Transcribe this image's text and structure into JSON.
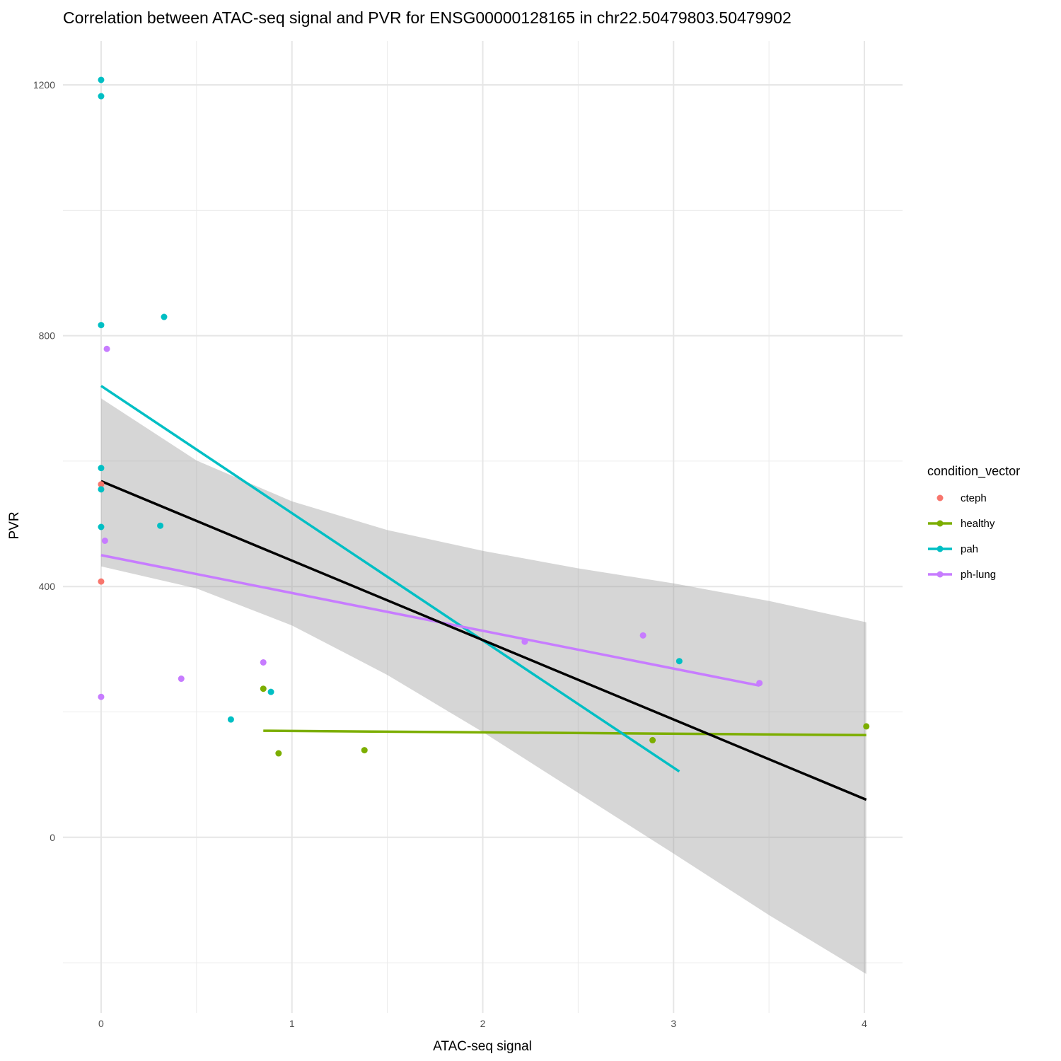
{
  "chart_data": {
    "type": "scatter",
    "title": "Correlation between ATAC-seq signal and PVR for ENSG00000128165 in chr22.50479803.50479902",
    "xlabel": "ATAC-seq signal",
    "ylabel": "PVR",
    "xlim": [
      -0.2,
      4.2
    ],
    "ylim": [
      -280,
      1270
    ],
    "x_ticks": [
      0,
      1,
      2,
      3,
      4
    ],
    "y_ticks": [
      0,
      400,
      800,
      1200
    ],
    "x_minor": [
      0.5,
      1.5,
      2.5,
      3.5
    ],
    "y_minor": [
      -200,
      200,
      600,
      1000
    ],
    "grid": true,
    "legend": {
      "title": "condition_vector",
      "position": "right"
    },
    "series": [
      {
        "name": "cteph",
        "color": "#F8766D",
        "points": [
          [
            0.0,
            408
          ],
          [
            0.0,
            563
          ]
        ],
        "fit": null
      },
      {
        "name": "healthy",
        "color": "#7CAE00",
        "points": [
          [
            0.85,
            237
          ],
          [
            0.93,
            134
          ],
          [
            1.38,
            139
          ],
          [
            2.89,
            155
          ],
          [
            4.01,
            177
          ]
        ],
        "fit": [
          [
            0.85,
            170
          ],
          [
            4.01,
            163
          ]
        ]
      },
      {
        "name": "pah",
        "color": "#00BFC4",
        "points": [
          [
            0.0,
            1208
          ],
          [
            0.0,
            1182
          ],
          [
            0.0,
            817
          ],
          [
            0.33,
            830
          ],
          [
            0.0,
            589
          ],
          [
            0.0,
            555
          ],
          [
            0.0,
            495
          ],
          [
            0.31,
            497
          ],
          [
            0.89,
            232
          ],
          [
            0.68,
            188
          ],
          [
            3.03,
            281
          ]
        ],
        "fit": [
          [
            0.0,
            720
          ],
          [
            3.03,
            105
          ]
        ]
      },
      {
        "name": "ph-lung",
        "color": "#C77CFF",
        "points": [
          [
            0.03,
            779
          ],
          [
            0.02,
            473
          ],
          [
            0.0,
            224
          ],
          [
            0.42,
            253
          ],
          [
            0.85,
            279
          ],
          [
            2.22,
            312
          ],
          [
            2.84,
            322
          ],
          [
            3.45,
            246
          ]
        ],
        "fit": [
          [
            0.0,
            450
          ],
          [
            3.45,
            242
          ]
        ]
      }
    ],
    "overall_fit": {
      "color": "#000000",
      "line": [
        [
          0.0,
          568
        ],
        [
          4.01,
          60
        ]
      ],
      "ci_color": "#999999",
      "ci_upper": [
        [
          0.0,
          700
        ],
        [
          0.5,
          601
        ],
        [
          1.0,
          536
        ],
        [
          1.5,
          490
        ],
        [
          2.0,
          457
        ],
        [
          2.5,
          429
        ],
        [
          3.0,
          405
        ],
        [
          3.5,
          377
        ],
        [
          4.01,
          343
        ]
      ],
      "ci_lower": [
        [
          0.0,
          432
        ],
        [
          0.5,
          397
        ],
        [
          1.0,
          338
        ],
        [
          1.5,
          259
        ],
        [
          2.0,
          168
        ],
        [
          2.5,
          71
        ],
        [
          3.0,
          -26
        ],
        [
          3.5,
          -124
        ],
        [
          4.01,
          -218
        ]
      ]
    }
  }
}
